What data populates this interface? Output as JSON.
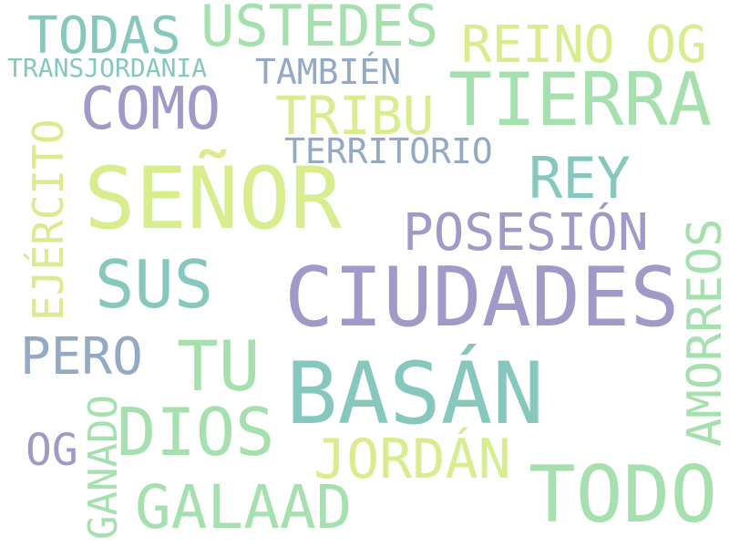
{
  "palette": {
    "lavender": "#a09ac8",
    "teal": "#86c8be",
    "mint": "#a6e0ae",
    "lime": "#d9ec8e",
    "slate": "#93a9c4"
  },
  "words": {
    "senor": "SEÑOR",
    "ciudades": "CIUDADES",
    "basan": "BASÁN",
    "tierra": "TIERRA",
    "todo": "TODO",
    "como": "COMO",
    "sus": "SUS",
    "ustedes": "USTEDES",
    "todas": "TODAS",
    "reino_og": "REINO OG",
    "rey": "REY",
    "posesion": "POSESIÓN",
    "tu": "TU",
    "dios": "DIOS",
    "galaad": "GALAAD",
    "jordan": "JORDÁN",
    "pero": "PERO",
    "tribu": "TRIBU",
    "tambien": "TAMBIÉN",
    "territorio": "TERRITORIO",
    "transjordania": "TRANSJORDANIA",
    "og": "OG",
    "ejercito": "EJÉRCITO",
    "ganado": "GANADO",
    "amorreos": "AMORREOS"
  }
}
